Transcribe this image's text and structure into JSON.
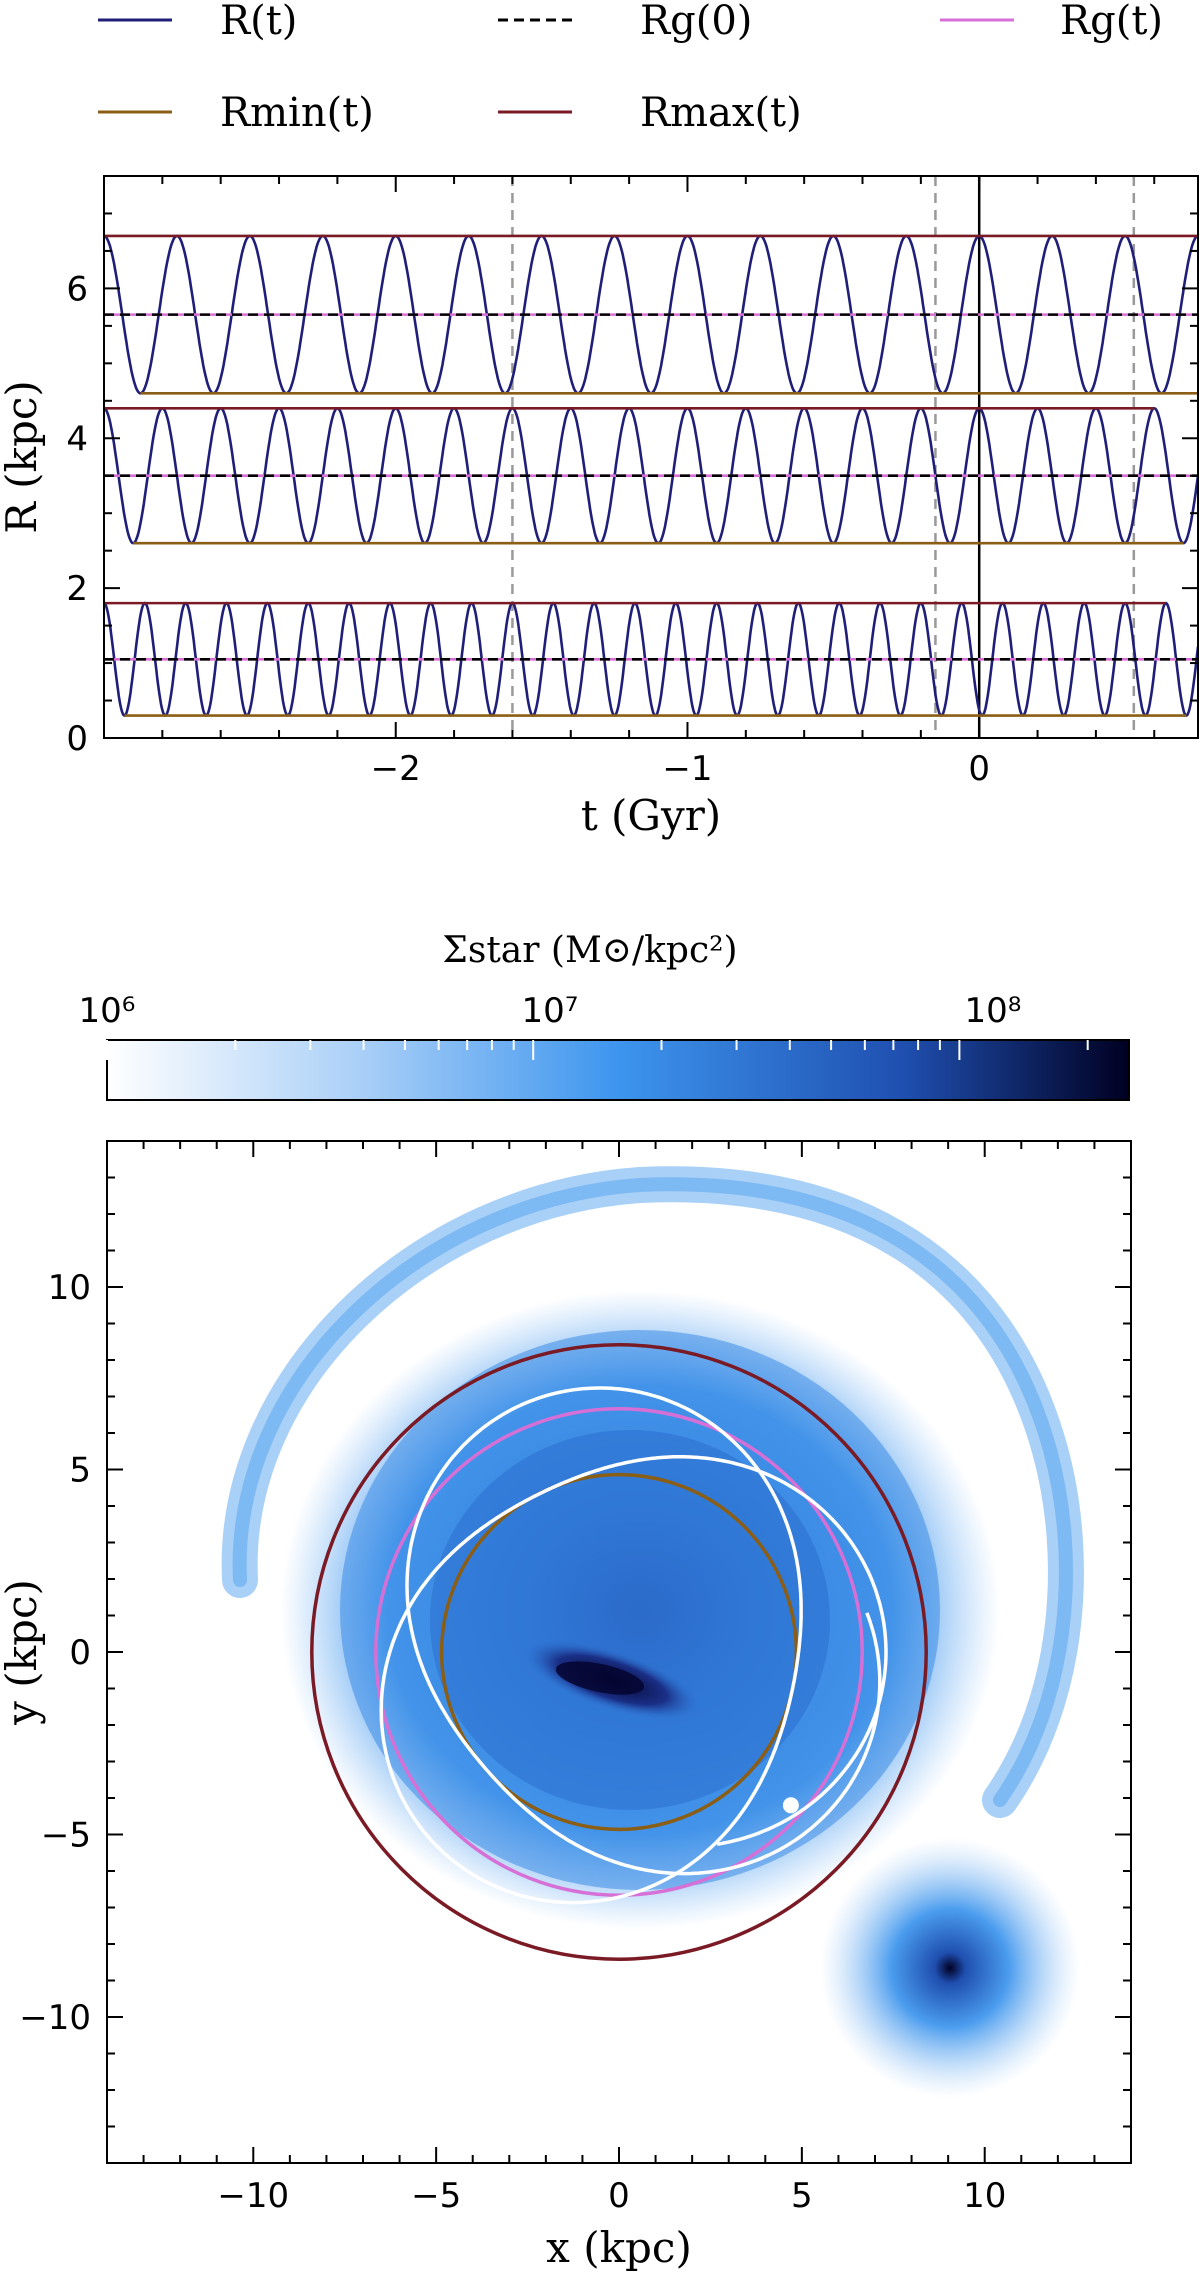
{
  "legend": {
    "items": [
      {
        "label": "R(t)",
        "color": "#1f1f7a",
        "dash": false
      },
      {
        "label": "Rg(0)",
        "color": "#000000",
        "dash": true
      },
      {
        "label": "Rg(t)",
        "color": "#d670d6",
        "dash": false
      },
      {
        "label": "Rmin(t)",
        "color": "#8b5e15",
        "dash": false
      },
      {
        "label": "Rmax(t)",
        "color": "#7a1a24",
        "dash": false
      }
    ]
  },
  "colorbar": {
    "label": "Σstar (M⊙/kpc²)",
    "ticks": [
      "10⁶",
      "10⁷",
      "10⁸"
    ],
    "range": [
      1000000,
      250000000
    ],
    "scale": "log",
    "colors": [
      "#ffffff",
      "#a9cff7",
      "#3d95ee",
      "#1f4fb0",
      "#000022"
    ]
  },
  "chart_data": [
    {
      "type": "line",
      "xlabel": "t (Gyr)",
      "ylabel": "R (kpc)",
      "xlim": [
        -3.0,
        0.75
      ],
      "ylim": [
        0,
        7.5
      ],
      "xticks": [
        -2,
        -1,
        0
      ],
      "yticks": [
        0,
        2,
        4,
        6
      ],
      "vlines_dashed": [
        -1.6,
        -0.15,
        0.53
      ],
      "vline_solid": 0,
      "series": [
        {
          "name": "R(t)",
          "orbit": 1,
          "rmin": 0.3,
          "rmax": 1.8,
          "period_gyr": 0.14
        },
        {
          "name": "Rg(t)",
          "orbit": 1,
          "values": 1.05
        },
        {
          "name": "Rg(0)",
          "orbit": 1,
          "values": 1.05
        },
        {
          "name": "R(t)",
          "orbit": 2,
          "rmin": 2.6,
          "rmax": 4.4,
          "period_gyr": 0.2
        },
        {
          "name": "Rg(t)",
          "orbit": 2,
          "values": 3.5
        },
        {
          "name": "Rg(0)",
          "orbit": 2,
          "values": 3.5
        },
        {
          "name": "R(t)",
          "orbit": 3,
          "rmin": 4.6,
          "rmax": 6.7,
          "period_gyr": 0.25
        },
        {
          "name": "Rg(t)",
          "orbit": 3,
          "values": 5.65
        },
        {
          "name": "Rg(0)",
          "orbit": 3,
          "values": 5.65
        }
      ]
    },
    {
      "type": "heatmap",
      "xlabel": "x (kpc)",
      "ylabel": "y (kpc)",
      "xlim": [
        -14,
        14
      ],
      "ylim": [
        -14,
        14
      ],
      "xticks": [
        -10,
        -5,
        0,
        5,
        10
      ],
      "yticks": [
        -10,
        -5,
        0,
        5,
        10
      ],
      "circles": [
        {
          "name": "Rmax",
          "radius": 8.4
        },
        {
          "name": "Rg",
          "radius": 6.65
        },
        {
          "name": "Rmin",
          "radius": 4.85
        }
      ],
      "satellite_center": [
        9.0,
        -11.8
      ],
      "orbit_endpoint": [
        4.7,
        -4.2
      ]
    }
  ]
}
